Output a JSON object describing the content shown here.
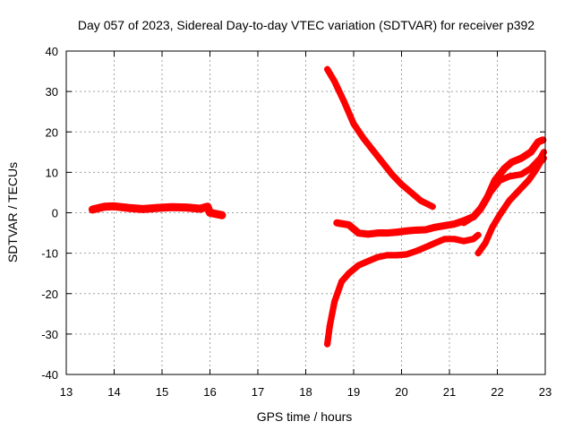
{
  "chart_data": {
    "type": "scatter",
    "title": "Day 057 of 2023, Sidereal Day-to-day VTEC variation (SDTVAR) for receiver p392",
    "xlabel": "GPS time / hours",
    "ylabel": "SDTVAR / TECUs",
    "xlim": [
      13,
      23
    ],
    "ylim": [
      -40,
      40
    ],
    "xticks": [
      "13",
      "14",
      "15",
      "16",
      "17",
      "18",
      "19",
      "20",
      "21",
      "22",
      "23"
    ],
    "yticks": [
      "-40",
      "-30",
      "-20",
      "-10",
      "0",
      "10",
      "20",
      "30",
      "40"
    ],
    "grid": true,
    "marker": "+",
    "color": "#ff0000",
    "series": [
      {
        "points": [
          [
            13.55,
            0.8
          ],
          [
            13.8,
            1.5
          ],
          [
            14.0,
            1.6
          ],
          [
            14.3,
            1.2
          ],
          [
            14.6,
            0.9
          ],
          [
            14.9,
            1.2
          ],
          [
            15.2,
            1.4
          ],
          [
            15.5,
            1.3
          ],
          [
            15.8,
            1.0
          ],
          [
            15.95,
            1.5
          ],
          [
            16.0,
            0.0
          ],
          [
            16.25,
            -0.6
          ]
        ],
        "band": 2.0
      },
      {
        "points": [
          [
            18.45,
            35.5
          ],
          [
            18.6,
            32.5
          ],
          [
            18.8,
            27.5
          ],
          [
            19.0,
            22.0
          ],
          [
            19.2,
            18.5
          ],
          [
            19.4,
            15.5
          ],
          [
            19.6,
            12.5
          ],
          [
            19.8,
            9.5
          ],
          [
            20.0,
            7.0
          ],
          [
            20.2,
            5.0
          ],
          [
            20.4,
            3.0
          ],
          [
            20.65,
            1.5
          ]
        ],
        "band": 1.6
      },
      {
        "points": [
          [
            18.65,
            -2.5
          ],
          [
            18.9,
            -3.0
          ],
          [
            19.1,
            -5.0
          ],
          [
            19.3,
            -5.3
          ],
          [
            19.5,
            -5.0
          ],
          [
            19.7,
            -5.0
          ],
          [
            19.9,
            -4.8
          ],
          [
            20.1,
            -4.5
          ],
          [
            20.3,
            -4.3
          ],
          [
            20.5,
            -4.2
          ],
          [
            20.7,
            -3.6
          ],
          [
            20.9,
            -3.2
          ],
          [
            21.1,
            -2.8
          ],
          [
            21.3,
            -2.0
          ],
          [
            21.5,
            -1.0
          ],
          [
            21.65,
            1.0
          ],
          [
            21.8,
            4.0
          ],
          [
            21.95,
            8.0
          ],
          [
            22.15,
            11.0
          ],
          [
            22.3,
            12.5
          ],
          [
            22.5,
            13.5
          ],
          [
            22.7,
            15.0
          ],
          [
            22.85,
            17.5
          ],
          [
            22.95,
            18.0
          ]
        ],
        "band": 1.8
      },
      {
        "points": [
          [
            18.45,
            -32.5
          ],
          [
            18.5,
            -28.0
          ],
          [
            18.6,
            -22.0
          ],
          [
            18.75,
            -17.0
          ],
          [
            18.9,
            -15.0
          ],
          [
            19.1,
            -13.0
          ],
          [
            19.3,
            -12.0
          ],
          [
            19.5,
            -11.0
          ],
          [
            19.7,
            -10.5
          ],
          [
            19.9,
            -10.5
          ],
          [
            20.1,
            -10.3
          ],
          [
            20.3,
            -9.5
          ],
          [
            20.5,
            -8.5
          ],
          [
            20.7,
            -7.5
          ],
          [
            20.9,
            -6.5
          ],
          [
            21.1,
            -6.5
          ],
          [
            21.3,
            -7.0
          ],
          [
            21.5,
            -6.5
          ],
          [
            21.6,
            -5.5
          ]
        ],
        "band": 1.6
      },
      {
        "points": [
          [
            21.3,
            -2.5
          ],
          [
            21.5,
            -1.0
          ],
          [
            21.65,
            1.0
          ],
          [
            21.85,
            5.0
          ],
          [
            22.05,
            8.0
          ],
          [
            22.25,
            9.0
          ],
          [
            22.5,
            9.5
          ],
          [
            22.7,
            11.0
          ],
          [
            22.9,
            13.5
          ],
          [
            22.97,
            15.0
          ]
        ],
        "band": 1.6
      },
      {
        "points": [
          [
            21.6,
            -10.0
          ],
          [
            21.75,
            -7.5
          ],
          [
            21.9,
            -3.5
          ],
          [
            22.05,
            -0.5
          ],
          [
            22.25,
            3.0
          ],
          [
            22.45,
            5.5
          ],
          [
            22.65,
            8.0
          ],
          [
            22.8,
            10.5
          ],
          [
            22.9,
            12.5
          ],
          [
            22.97,
            13.5
          ]
        ],
        "band": 1.6
      }
    ]
  }
}
